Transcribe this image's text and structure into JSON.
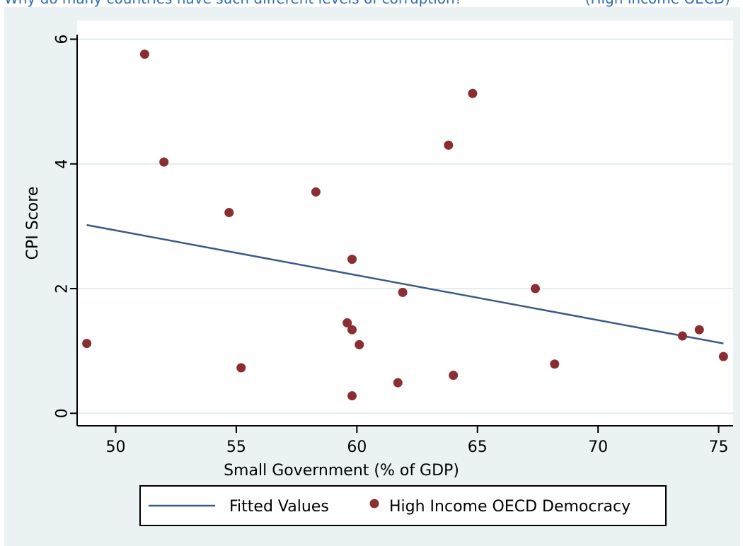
{
  "header_fragments": {
    "left": "Why do many countries have such different levels of corruption?",
    "right": "(High income OECD)"
  },
  "chart_data": {
    "type": "scatter",
    "title": "",
    "xlabel": "Small Government (% of GDP)",
    "ylabel": "CPI Score",
    "xlim": [
      48.4,
      75.6
    ],
    "ylim": [
      -0.2,
      6.3
    ],
    "x_ticks": [
      50,
      55,
      60,
      65,
      70,
      75
    ],
    "y_ticks": [
      0,
      2,
      4,
      6
    ],
    "grid": true,
    "legend_position": "bottom",
    "colors": {
      "background": "#eaf2f3",
      "plot_background": "#ffffff",
      "grid": "#e3ecee",
      "points": "#8b2e32",
      "line": "#3b5a88"
    },
    "series": [
      {
        "name": "High Income OECD Democracy",
        "kind": "scatter",
        "points": [
          {
            "x": 48.8,
            "y": 1.12
          },
          {
            "x": 51.2,
            "y": 5.76
          },
          {
            "x": 52.0,
            "y": 4.03
          },
          {
            "x": 54.7,
            "y": 3.22
          },
          {
            "x": 55.2,
            "y": 0.73
          },
          {
            "x": 58.3,
            "y": 3.55
          },
          {
            "x": 59.6,
            "y": 1.45
          },
          {
            "x": 59.8,
            "y": 2.47
          },
          {
            "x": 59.8,
            "y": 1.34
          },
          {
            "x": 59.8,
            "y": 0.28
          },
          {
            "x": 60.1,
            "y": 1.1
          },
          {
            "x": 61.7,
            "y": 0.49
          },
          {
            "x": 61.9,
            "y": 1.94
          },
          {
            "x": 63.8,
            "y": 4.3
          },
          {
            "x": 64.0,
            "y": 0.61
          },
          {
            "x": 64.8,
            "y": 5.13
          },
          {
            "x": 67.4,
            "y": 2.0
          },
          {
            "x": 68.2,
            "y": 0.79
          },
          {
            "x": 73.5,
            "y": 1.24
          },
          {
            "x": 74.2,
            "y": 1.34
          },
          {
            "x": 75.2,
            "y": 0.91
          }
        ]
      },
      {
        "name": "Fitted Values",
        "kind": "line",
        "points": [
          {
            "x": 48.8,
            "y": 3.02
          },
          {
            "x": 75.2,
            "y": 1.12
          }
        ]
      }
    ]
  },
  "legend": {
    "items": [
      {
        "label": "Fitted Values",
        "symbol": "line"
      },
      {
        "label": "High Income OECD Democracy",
        "symbol": "dot"
      }
    ]
  }
}
